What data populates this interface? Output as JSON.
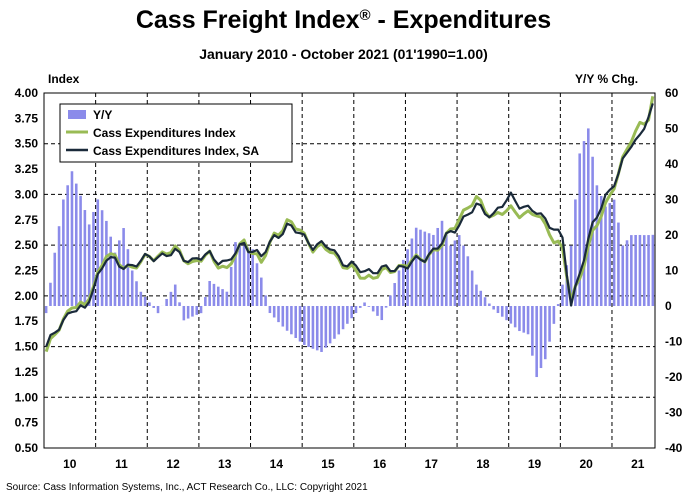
{
  "chart_data": {
    "type": "bar+line",
    "title": "Cass Freight Index",
    "title_mark": "®",
    "title_suffix": " - Expenditures",
    "subtitle": "January 2010 - October 2021 (01'1990=1.00)",
    "left_axis_label": "Index",
    "right_axis_label": "Y/Y % Chg.",
    "source": "Source: Cass Information Systems, Inc., ACT Research Co., LLC: Copyright 2021",
    "left_axis": {
      "min": 0.5,
      "max": 4.0,
      "step": 0.25,
      "ticks": [
        "0.50",
        "0.75",
        "1.00",
        "1.25",
        "1.50",
        "1.75",
        "2.00",
        "2.25",
        "2.50",
        "2.75",
        "3.00",
        "3.25",
        "3.50",
        "3.75",
        "4.00"
      ]
    },
    "right_axis": {
      "min": -40,
      "max": 60,
      "ticks": [
        "-40",
        "-30",
        "-20",
        "-10",
        "0",
        "10",
        "20",
        "30",
        "40",
        "50",
        "60"
      ]
    },
    "x_categories": [
      "10",
      "11",
      "12",
      "13",
      "14",
      "15",
      "16",
      "17",
      "18",
      "19",
      "20",
      "21"
    ],
    "legend": [
      "Y/Y",
      "Cass Expenditures Index",
      "Cass Expenditures Index, SA"
    ],
    "colors": {
      "yoy": "#8b8bea",
      "index": "#99bb55",
      "index_sa": "#1a2a3a",
      "grid": "#000000"
    },
    "series": [
      {
        "name": "Cass Expenditures Index",
        "axis": "left",
        "months": 142,
        "knots": [
          [
            0,
            1.45
          ],
          [
            6,
            1.92
          ],
          [
            9,
            1.88
          ],
          [
            12,
            2.22
          ],
          [
            14,
            2.42
          ],
          [
            17,
            2.32
          ],
          [
            20,
            2.28
          ],
          [
            24,
            2.38
          ],
          [
            30,
            2.45
          ],
          [
            34,
            2.32
          ],
          [
            38,
            2.4
          ],
          [
            42,
            2.25
          ],
          [
            46,
            2.55
          ],
          [
            50,
            2.32
          ],
          [
            53,
            2.6
          ],
          [
            56,
            2.72
          ],
          [
            59,
            2.65
          ],
          [
            62,
            2.48
          ],
          [
            66,
            2.45
          ],
          [
            70,
            2.28
          ],
          [
            74,
            2.18
          ],
          [
            78,
            2.22
          ],
          [
            84,
            2.32
          ],
          [
            88,
            2.38
          ],
          [
            92,
            2.5
          ],
          [
            96,
            2.78
          ],
          [
            100,
            2.95
          ],
          [
            104,
            2.78
          ],
          [
            108,
            2.85
          ],
          [
            112,
            2.8
          ],
          [
            114,
            2.8
          ],
          [
            117,
            2.65
          ],
          [
            118,
            2.55
          ],
          [
            120,
            2.45
          ],
          [
            122,
            1.95
          ],
          [
            124,
            2.2
          ],
          [
            127,
            2.6
          ],
          [
            130,
            2.9
          ],
          [
            133,
            3.2
          ],
          [
            136,
            3.55
          ],
          [
            138,
            3.7
          ],
          [
            140,
            3.75
          ],
          [
            141,
            3.92
          ]
        ]
      },
      {
        "name": "Cass Expenditures Index, SA",
        "axis": "left",
        "months": 142,
        "knots": [
          [
            0,
            1.5
          ],
          [
            6,
            1.88
          ],
          [
            9,
            1.85
          ],
          [
            12,
            2.2
          ],
          [
            14,
            2.38
          ],
          [
            17,
            2.3
          ],
          [
            20,
            2.3
          ],
          [
            24,
            2.38
          ],
          [
            30,
            2.42
          ],
          [
            34,
            2.35
          ],
          [
            38,
            2.4
          ],
          [
            42,
            2.32
          ],
          [
            46,
            2.52
          ],
          [
            50,
            2.38
          ],
          [
            53,
            2.58
          ],
          [
            56,
            2.68
          ],
          [
            59,
            2.62
          ],
          [
            62,
            2.5
          ],
          [
            66,
            2.48
          ],
          [
            70,
            2.3
          ],
          [
            74,
            2.25
          ],
          [
            78,
            2.25
          ],
          [
            84,
            2.3
          ],
          [
            88,
            2.38
          ],
          [
            92,
            2.52
          ],
          [
            96,
            2.72
          ],
          [
            100,
            2.88
          ],
          [
            104,
            2.8
          ],
          [
            108,
            2.98
          ],
          [
            112,
            2.85
          ],
          [
            114,
            2.82
          ],
          [
            117,
            2.72
          ],
          [
            118,
            2.68
          ],
          [
            120,
            2.55
          ],
          [
            122,
            1.9
          ],
          [
            124,
            2.25
          ],
          [
            127,
            2.68
          ],
          [
            130,
            2.98
          ],
          [
            133,
            3.2
          ],
          [
            136,
            3.5
          ],
          [
            138,
            3.58
          ],
          [
            140,
            3.78
          ],
          [
            141,
            3.85
          ]
        ]
      },
      {
        "name": "Y/Y",
        "axis": "right",
        "type": "bar",
        "months": 142,
        "knots": [
          [
            0,
            -2
          ],
          [
            2,
            15
          ],
          [
            4,
            30
          ],
          [
            6,
            38
          ],
          [
            8,
            31
          ],
          [
            10,
            23
          ],
          [
            12,
            30
          ],
          [
            14,
            24
          ],
          [
            16,
            15
          ],
          [
            18,
            22
          ],
          [
            20,
            10
          ],
          [
            22,
            4
          ],
          [
            26,
            -2
          ],
          [
            30,
            6
          ],
          [
            32,
            -4
          ],
          [
            36,
            -2
          ],
          [
            38,
            7
          ],
          [
            42,
            4
          ],
          [
            44,
            18
          ],
          [
            48,
            16
          ],
          [
            50,
            8
          ],
          [
            52,
            -2
          ],
          [
            56,
            -7
          ],
          [
            60,
            -11
          ],
          [
            64,
            -13
          ],
          [
            68,
            -8
          ],
          [
            72,
            -2
          ],
          [
            74,
            1
          ],
          [
            78,
            -4
          ],
          [
            82,
            10
          ],
          [
            86,
            22
          ],
          [
            90,
            20
          ],
          [
            92,
            24
          ],
          [
            94,
            17
          ],
          [
            96,
            20
          ],
          [
            98,
            14
          ],
          [
            100,
            6
          ],
          [
            104,
            -1
          ],
          [
            106,
            -3
          ],
          [
            108,
            -5
          ],
          [
            110,
            -7
          ],
          [
            112,
            -8
          ],
          [
            114,
            -20
          ],
          [
            116,
            -15
          ],
          [
            118,
            -5
          ],
          [
            120,
            6
          ],
          [
            122,
            17
          ],
          [
            124,
            43
          ],
          [
            126,
            50
          ],
          [
            128,
            34
          ],
          [
            130,
            28
          ],
          [
            132,
            30
          ],
          [
            134,
            17
          ],
          [
            136,
            20
          ]
        ]
      }
    ]
  }
}
